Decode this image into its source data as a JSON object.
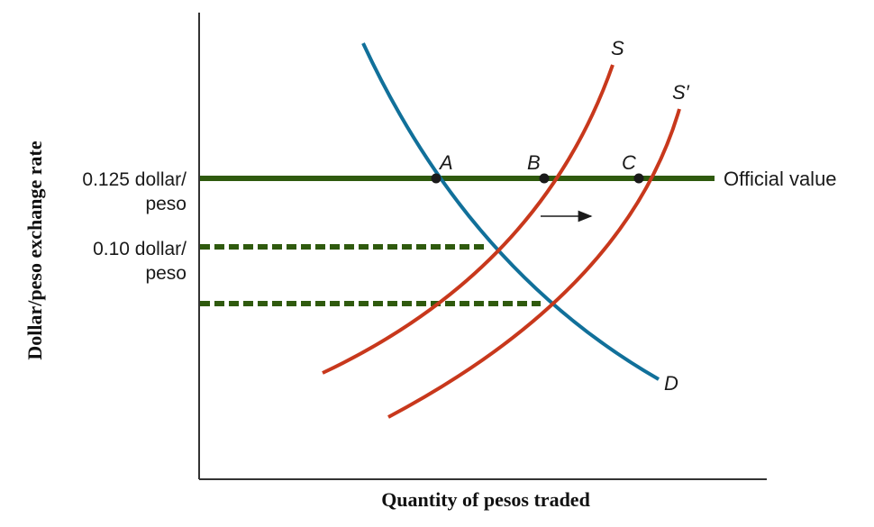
{
  "diagram": {
    "axes": {
      "y_title": "Dollar/peso exchange rate",
      "x_title": "Quantity of pesos traded"
    },
    "y_labels": {
      "rate_0125": {
        "line1": "0.125 dollar/",
        "line2": "peso"
      },
      "rate_010": {
        "line1": "0.10 dollar/",
        "line2": "peso"
      }
    },
    "curves": {
      "demand": {
        "label": "D",
        "color": "#11709a"
      },
      "supply": {
        "label": "S",
        "color": "#c8381c"
      },
      "supply_shifted": {
        "label": "S′",
        "color": "#c8381c"
      }
    },
    "official_line": {
      "label": "Official value",
      "color": "#2f5a0e"
    },
    "points": {
      "a": "A",
      "b": "B",
      "c": "C"
    },
    "shift_arrow": "right"
  }
}
